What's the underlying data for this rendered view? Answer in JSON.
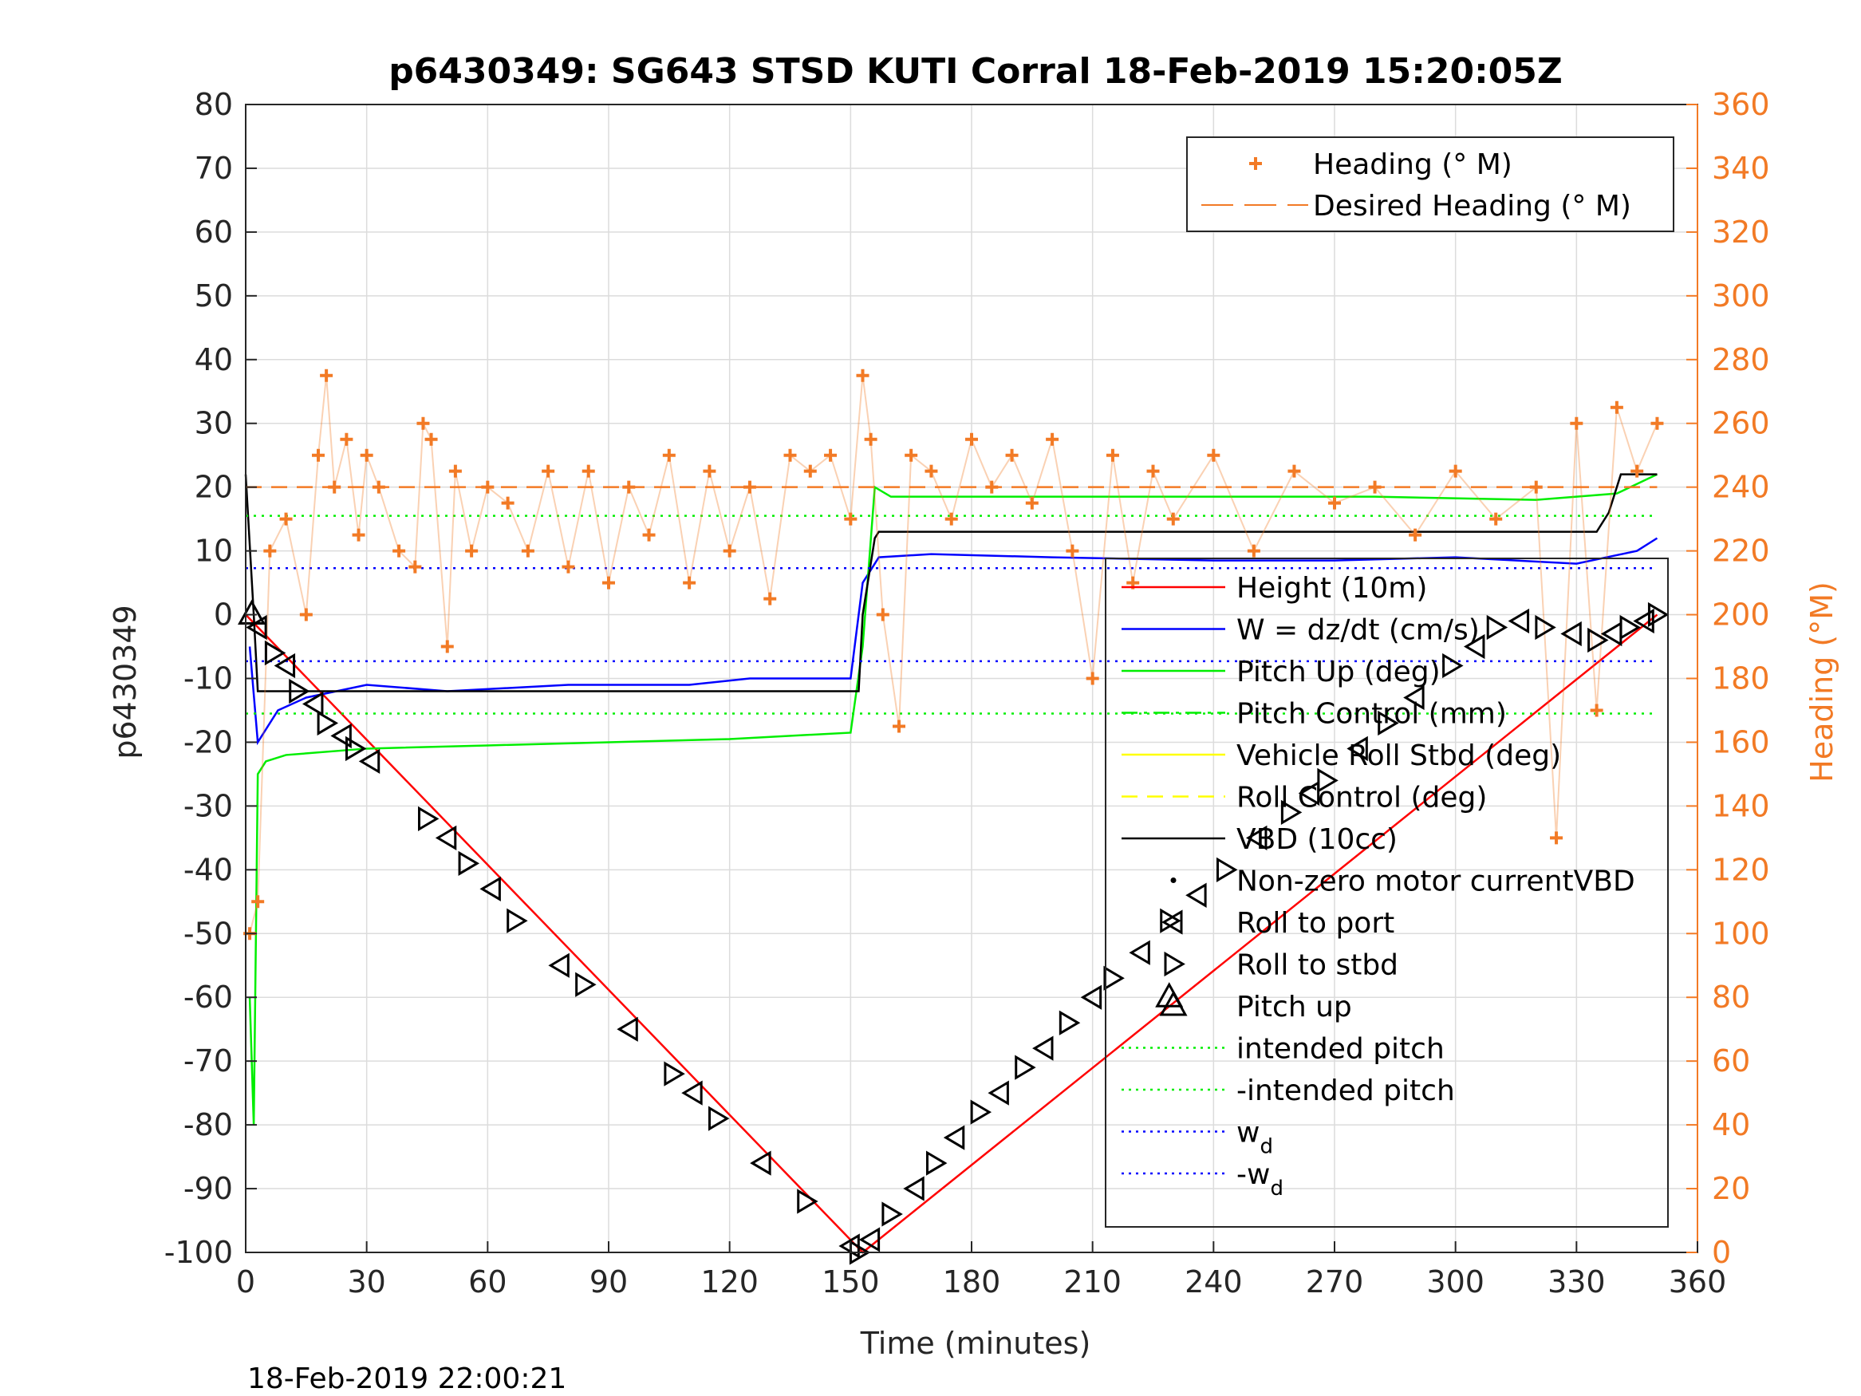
{
  "chart_data": {
    "type": "line",
    "title": "p6430349: SG643 STSD KUTI Corral 18-Feb-2019 15:20:05Z",
    "xlabel": "Time (minutes)",
    "ylabel_left": "p6430349",
    "ylabel_right": "Heading (°M)",
    "timestamp": "18-Feb-2019 22:00:21",
    "xlim": [
      0,
      360
    ],
    "ylim_left": [
      -100,
      80
    ],
    "ylim_right": [
      0,
      360
    ],
    "xticks": [
      0,
      30,
      60,
      90,
      120,
      150,
      180,
      210,
      240,
      270,
      300,
      330,
      360
    ],
    "yticks_left": [
      -100,
      -90,
      -80,
      -70,
      -60,
      -50,
      -40,
      -30,
      -20,
      -10,
      0,
      10,
      20,
      30,
      40,
      50,
      60,
      70,
      80
    ],
    "yticks_right": [
      0,
      20,
      40,
      60,
      80,
      100,
      120,
      140,
      160,
      180,
      200,
      220,
      240,
      260,
      280,
      300,
      320,
      340,
      360
    ],
    "grid": true,
    "legend_right": {
      "placement": "top-right",
      "entries": [
        {
          "label": "Heading (° M)",
          "color": "#f27a25",
          "style": "plus"
        },
        {
          "label": "Desired Heading (° M)",
          "color": "#f27a25",
          "style": "dashed"
        }
      ]
    },
    "legend_main": {
      "placement": "right",
      "entries": [
        {
          "label": "Height (10m)",
          "color": "#ff0000",
          "style": "solid"
        },
        {
          "label": "W = dz/dt (cm/s)",
          "color": "#0000ff",
          "style": "solid"
        },
        {
          "label": "Pitch Up (deg)",
          "color": "#00ee00",
          "style": "solid"
        },
        {
          "label": "Pitch Control (mm)",
          "color": "#00ee00",
          "style": "dashdot"
        },
        {
          "label": "Vehicle Roll Stbd (deg)",
          "color": "#ffff00",
          "style": "solid"
        },
        {
          "label": "Roll Control (deg)",
          "color": "#ffff00",
          "style": "dashed"
        },
        {
          "label": "VBD (10cc)",
          "color": "#000000",
          "style": "solid"
        },
        {
          "label": "Non-zero motor currentVBD",
          "color": "#000000",
          "style": "dot"
        },
        {
          "label": "Roll to port",
          "color": "#000000",
          "style": "tri-left"
        },
        {
          "label": "Roll to stbd",
          "color": "#000000",
          "style": "tri-right"
        },
        {
          "label": "Pitch up",
          "color": "#000000",
          "style": "tri-up"
        },
        {
          "label": "intended pitch",
          "color": "#00ee00",
          "style": "dotted"
        },
        {
          "label": "-intended pitch",
          "color": "#00ee00",
          "style": "dotted"
        },
        {
          "label": "w",
          "sub": "d",
          "color": "#0000ff",
          "style": "dotted"
        },
        {
          "label": "-w",
          "sub": "d",
          "color": "#0000ff",
          "style": "dotted"
        }
      ]
    },
    "series": [
      {
        "name": "Height (10m)",
        "axis": "left",
        "color": "#ff0000",
        "x": [
          0,
          153,
          350
        ],
        "y": [
          0,
          -100,
          0
        ]
      },
      {
        "name": "W = dz/dt (cm/s)",
        "axis": "left",
        "color": "#0000ff",
        "x": [
          1,
          3,
          8,
          15,
          30,
          50,
          80,
          110,
          125,
          135,
          150,
          153,
          157,
          170,
          200,
          240,
          270,
          300,
          330,
          345,
          350
        ],
        "y": [
          -5,
          -20,
          -15,
          -13,
          -11,
          -12,
          -11,
          -11,
          -10,
          -10,
          -10,
          5,
          9,
          9.5,
          9,
          8.5,
          8.5,
          9,
          8,
          10,
          12
        ]
      },
      {
        "name": "Pitch Up (deg)",
        "axis": "left",
        "color": "#00ee00",
        "x": [
          1,
          2,
          3,
          5,
          10,
          30,
          60,
          90,
          120,
          150,
          153,
          156,
          160,
          200,
          240,
          280,
          320,
          340,
          350
        ],
        "y": [
          -60,
          -80,
          -25,
          -23,
          -22,
          -21,
          -20.5,
          -20,
          -19.5,
          -18.5,
          -5,
          20,
          18.5,
          18.5,
          18.5,
          18.5,
          18,
          19,
          22
        ]
      },
      {
        "name": "VBD (10cc)",
        "axis": "left",
        "color": "#000000",
        "x": [
          0,
          2,
          3,
          152,
          153,
          156,
          157,
          200,
          250,
          300,
          335,
          338,
          341,
          350
        ],
        "y": [
          22,
          0,
          -12,
          -12,
          0,
          12,
          13,
          13,
          13,
          13,
          13,
          16,
          22,
          22
        ]
      },
      {
        "name": "intended pitch",
        "axis": "left",
        "color": "#00ee00",
        "x": [
          0,
          350
        ],
        "y": [
          15.5,
          15.5
        ]
      },
      {
        "name": "-intended pitch",
        "axis": "left",
        "color": "#00ee00",
        "x": [
          0,
          350
        ],
        "y": [
          -15.5,
          -15.5
        ]
      },
      {
        "name": "w_d",
        "axis": "left",
        "color": "#0000ff",
        "x": [
          0,
          350
        ],
        "y": [
          7.3,
          7.3
        ]
      },
      {
        "name": "-w_d",
        "axis": "left",
        "color": "#0000ff",
        "x": [
          0,
          350
        ],
        "y": [
          -7.3,
          -7.3
        ]
      },
      {
        "name": "Heading (° M)",
        "axis": "right",
        "color": "#f27a25",
        "x": [
          1,
          3,
          6,
          10,
          15,
          18,
          20,
          22,
          25,
          28,
          30,
          33,
          38,
          42,
          44,
          46,
          50,
          52,
          56,
          60,
          65,
          70,
          75,
          80,
          85,
          90,
          95,
          100,
          105,
          110,
          115,
          120,
          125,
          130,
          135,
          140,
          145,
          150,
          153,
          155,
          158,
          162,
          165,
          170,
          175,
          180,
          185,
          190,
          195,
          200,
          205,
          210,
          215,
          220,
          225,
          230,
          240,
          250,
          260,
          270,
          280,
          290,
          300,
          310,
          320,
          325,
          330,
          335,
          340,
          345,
          350
        ],
        "y": [
          100,
          110,
          220,
          230,
          200,
          250,
          275,
          240,
          255,
          225,
          250,
          240,
          220,
          215,
          260,
          255,
          190,
          245,
          220,
          240,
          235,
          220,
          245,
          215,
          245,
          210,
          240,
          225,
          250,
          210,
          245,
          220,
          240,
          205,
          250,
          245,
          250,
          230,
          275,
          255,
          200,
          165,
          250,
          245,
          230,
          255,
          240,
          250,
          235,
          255,
          220,
          180,
          250,
          210,
          245,
          230,
          250,
          220,
          245,
          235,
          240,
          225,
          245,
          230,
          240,
          130,
          260,
          170,
          265,
          245,
          260
        ]
      },
      {
        "name": "Desired Heading (° M)",
        "axis": "right",
        "color": "#f27a25",
        "x": [
          0,
          153,
          350
        ],
        "y": [
          240,
          240,
          240
        ]
      },
      {
        "name": "Roll to port / stbd",
        "axis": "left",
        "color": "#000000",
        "x": [
          3,
          7,
          10,
          13,
          17,
          20,
          24,
          27,
          31,
          45,
          50,
          55,
          61,
          67,
          78,
          84,
          95,
          106,
          111,
          117,
          128,
          139,
          150,
          152,
          155,
          160,
          166,
          171,
          176,
          182,
          187,
          193,
          198,
          204,
          210,
          215,
          222,
          229,
          236,
          243,
          251,
          259,
          264,
          268,
          276,
          283,
          290,
          299,
          305,
          310,
          316,
          322,
          329,
          335,
          339,
          343,
          347,
          350
        ],
        "y": [
          -2,
          -6,
          -8,
          -12,
          -14,
          -17,
          -19,
          -21,
          -23,
          -32,
          -35,
          -39,
          -43,
          -48,
          -55,
          -58,
          -65,
          -72,
          -75,
          -79,
          -86,
          -92,
          -99,
          -100,
          -98,
          -94,
          -90,
          -86,
          -82,
          -78,
          -75,
          -71,
          -68,
          -64,
          -60,
          -57,
          -53,
          -48,
          -44,
          -40,
          -35,
          -31,
          -28,
          -26,
          -21,
          -17,
          -13,
          -8,
          -5,
          -2,
          -1,
          -2,
          -3,
          -4,
          -3,
          -2,
          -1,
          0
        ]
      }
    ]
  }
}
